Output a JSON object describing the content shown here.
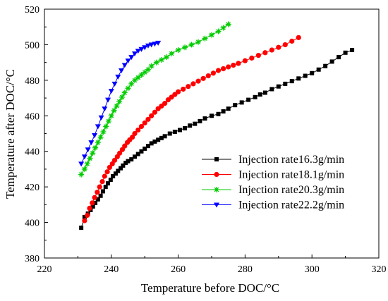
{
  "chart_data": {
    "type": "scatter",
    "xlabel": "Temperature before DOC/°C",
    "ylabel": "Temperature after DOC/°C",
    "xlim": [
      220,
      320
    ],
    "ylim": [
      380,
      520
    ],
    "xticks": [
      220,
      240,
      260,
      280,
      300,
      320
    ],
    "yticks": [
      380,
      400,
      420,
      440,
      460,
      480,
      500,
      520
    ],
    "grid": false,
    "legend_position": "lower-right",
    "series": [
      {
        "name": "Injection rate16.3g/min",
        "color": "#000000",
        "marker": "square",
        "x": [
          231,
          232,
          233,
          233.8,
          234.5,
          235.2,
          236,
          236.8,
          237.5,
          238.3,
          239,
          239.8,
          240.5,
          241.3,
          242,
          242.8,
          243.5,
          244.3,
          245,
          246,
          247,
          248,
          249,
          250,
          251,
          252,
          253,
          254,
          255,
          256,
          257.5,
          259,
          260.5,
          262,
          263.5,
          265,
          266.5,
          268,
          270,
          272,
          273.5,
          275,
          277,
          279,
          281,
          283,
          284.5,
          286,
          288,
          290,
          292,
          294,
          296,
          298,
          300,
          302,
          304,
          306,
          308,
          310,
          312
        ],
        "y": [
          397,
          403,
          405,
          407,
          409,
          411,
          413,
          415,
          417.5,
          420,
          422,
          424,
          426,
          427.5,
          429,
          430.5,
          432,
          433.5,
          434.5,
          435.5,
          437,
          438.5,
          440,
          441.5,
          443,
          444.5,
          445.5,
          446.5,
          447.5,
          448.5,
          450,
          451,
          452,
          453,
          454.5,
          455.5,
          457,
          458.5,
          460,
          461,
          462.5,
          464,
          466,
          467.5,
          469,
          470.5,
          472,
          473,
          475,
          476.5,
          478,
          479.5,
          481,
          482.5,
          484,
          486,
          488,
          490.5,
          493,
          495.5,
          497
        ]
      },
      {
        "name": "Injection rate18.1g/min",
        "color": "#ff0000",
        "marker": "circle",
        "x": [
          232,
          232.8,
          233.5,
          234.3,
          235,
          235.8,
          236.5,
          237.3,
          238,
          238.8,
          239.5,
          240.3,
          241,
          241.8,
          242.5,
          243.3,
          244,
          244.8,
          245.5,
          246.3,
          247,
          248,
          249,
          250,
          251,
          252,
          253,
          254,
          255,
          256,
          257,
          258,
          259,
          260,
          261.5,
          263,
          264.5,
          266,
          267.5,
          269,
          270.5,
          272,
          273.5,
          275,
          276.5,
          278,
          280,
          282,
          284,
          286,
          288,
          290,
          292,
          294,
          296
        ],
        "y": [
          401,
          404,
          408,
          411,
          414,
          417,
          420,
          423,
          426,
          428.5,
          431,
          433,
          435,
          437,
          439,
          441,
          443,
          445,
          446.5,
          448,
          450,
          452,
          454,
          456,
          458,
          460,
          462,
          464,
          465.5,
          467,
          469,
          470.5,
          472,
          473.5,
          475,
          476.5,
          478,
          479.5,
          481,
          482.5,
          484,
          485.5,
          486.5,
          487.5,
          488.5,
          489.5,
          491,
          492.5,
          494,
          495.5,
          497,
          498.5,
          500,
          502,
          504
        ]
      },
      {
        "name": "Injection rate20.3g/min",
        "color": "#00cc00",
        "marker": "star",
        "x": [
          231,
          232,
          232.8,
          233.6,
          234.4,
          235.2,
          236,
          236.8,
          237.6,
          238.4,
          239.2,
          240,
          240.8,
          241.6,
          242.4,
          243.2,
          244,
          245,
          246,
          247,
          248,
          249,
          250,
          251,
          252,
          253.5,
          255,
          256.5,
          258,
          260,
          262,
          264,
          266,
          268,
          270,
          272,
          273.5,
          275
        ],
        "y": [
          427,
          430,
          433,
          436,
          439,
          442,
          445,
          448,
          451,
          454,
          457,
          460,
          463,
          465.5,
          468,
          470.5,
          473,
          475.5,
          478,
          480,
          481.5,
          483,
          484.5,
          486,
          488,
          490,
          491.5,
          493,
          495,
          497,
          498.5,
          500,
          501.5,
          503.5,
          505.5,
          507.5,
          509.5,
          511.5
        ]
      },
      {
        "name": "Injection rate22.2g/min",
        "color": "#0000ff",
        "marker": "triangle-down",
        "x": [
          231,
          232,
          233,
          234,
          235,
          236,
          237,
          238,
          239,
          240,
          241,
          242,
          243,
          244,
          245,
          246,
          247,
          248,
          249,
          250,
          251,
          252,
          253,
          254
        ],
        "y": [
          433,
          437,
          441,
          445,
          449,
          454,
          459,
          464,
          469,
          474,
          478,
          482,
          485.5,
          488.5,
          491,
          493,
          495,
          496.5,
          497.5,
          498.5,
          499.5,
          500,
          500.5,
          501
        ]
      }
    ]
  }
}
